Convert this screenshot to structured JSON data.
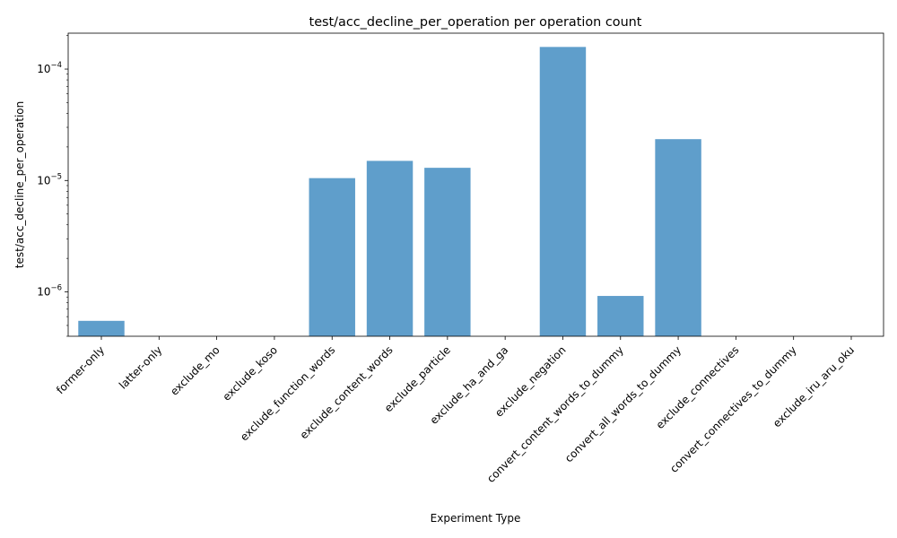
{
  "chart_data": {
    "type": "bar",
    "title": "test/acc_decline_per_operation per operation count",
    "xlabel": "Experiment Type",
    "ylabel": "test/acc_decline_per_operation",
    "yscale": "log",
    "ylim": [
      4e-07,
      0.00021
    ],
    "ytick_values": [
      1e-06,
      1e-05,
      0.0001
    ],
    "ytick_labels": [
      {
        "base": "10",
        "exp": "−6"
      },
      {
        "base": "10",
        "exp": "−5"
      },
      {
        "base": "10",
        "exp": "−4"
      }
    ],
    "grid": false,
    "bar_color": "#5f9ecb",
    "categories": [
      "former-only",
      "latter-only",
      "exclude_mo",
      "exclude_koso",
      "exclude_function_words",
      "exclude_content_words",
      "exclude_particle",
      "exclude_ha_and_ga",
      "exclude_negation",
      "convert_content_words_to_dummy",
      "convert_all_words_to_dummy",
      "exclude_connectives",
      "convert_connectives_to_dummy",
      "exclude_iru_aru_oku"
    ],
    "values": [
      5.5e-07,
      null,
      null,
      null,
      1.05e-05,
      1.5e-05,
      1.3e-05,
      null,
      0.000158,
      9.2e-07,
      2.35e-05,
      null,
      null,
      null
    ]
  }
}
